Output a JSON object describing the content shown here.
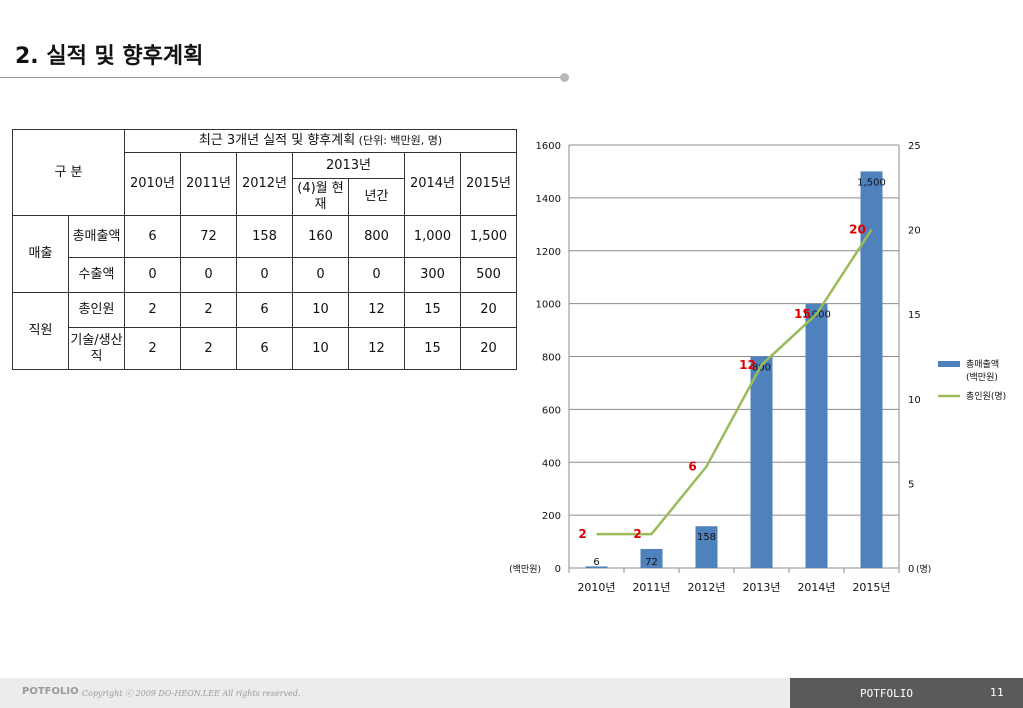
{
  "page": {
    "title": "2. 실적 및 향후계획",
    "footer_brand": "POTFOLIO",
    "footer_copyright": "Copyright ⓒ 2009 DO-HEON.LEE  All rights reserved.",
    "footer_label": "POTFOLIO",
    "page_number": "11"
  },
  "table": {
    "caption_main": "최근 3개년 실적 및 향후계획",
    "caption_unit": " (단위: 백만원, 명)",
    "division_label": "구 분",
    "year_2013": "2013년",
    "year_columns": [
      "2010년",
      "2011년",
      "2012년",
      "(4)월 현재",
      "년간",
      "2014년",
      "2015년"
    ],
    "groups": [
      {
        "name": "매출",
        "rows": [
          {
            "label": "총매출액",
            "values": [
              "6",
              "72",
              "158",
              "160",
              "800",
              "1,000",
              "1,500"
            ]
          },
          {
            "label": "수출액",
            "values": [
              "0",
              "0",
              "0",
              "0",
              "0",
              "300",
              "500"
            ]
          }
        ]
      },
      {
        "name": "직원",
        "rows": [
          {
            "label": "총인원",
            "values": [
              "2",
              "2",
              "6",
              "10",
              "12",
              "15",
              "20"
            ]
          },
          {
            "label": "기술/생산직",
            "values": [
              "2",
              "2",
              "6",
              "10",
              "12",
              "15",
              "20"
            ]
          }
        ]
      }
    ]
  },
  "chart_data": {
    "type": "bar",
    "categories": [
      "2010년",
      "2011년",
      "2012년",
      "2013년",
      "2014년",
      "2015년"
    ],
    "series": [
      {
        "name": "총매출액 (백만원)",
        "type": "bar",
        "axis": "left",
        "values": [
          6,
          72,
          158,
          800,
          1000,
          1500
        ],
        "labels": [
          "6",
          "72",
          "158",
          "800",
          "1,000",
          "1,500"
        ],
        "color": "#4f81bd"
      },
      {
        "name": "총인원(명)",
        "type": "line",
        "axis": "right",
        "values": [
          2,
          2,
          6,
          12,
          15,
          20
        ],
        "labels": [
          "2",
          "2",
          "6",
          "12",
          "15",
          "20"
        ],
        "color": "#9bbb59",
        "label_color": "#e00000"
      }
    ],
    "y_left": {
      "min": 0,
      "max": 1600,
      "ticks": [
        "0",
        "200",
        "400",
        "600",
        "800",
        "1000",
        "1200",
        "1400",
        "1600"
      ],
      "unit_label": "(백만원)"
    },
    "y_right": {
      "min": 0,
      "max": 25,
      "ticks": [
        "0",
        "5",
        "10",
        "15",
        "20",
        "25"
      ],
      "unit_label": "(명)"
    },
    "grid": true,
    "legend": "right"
  }
}
